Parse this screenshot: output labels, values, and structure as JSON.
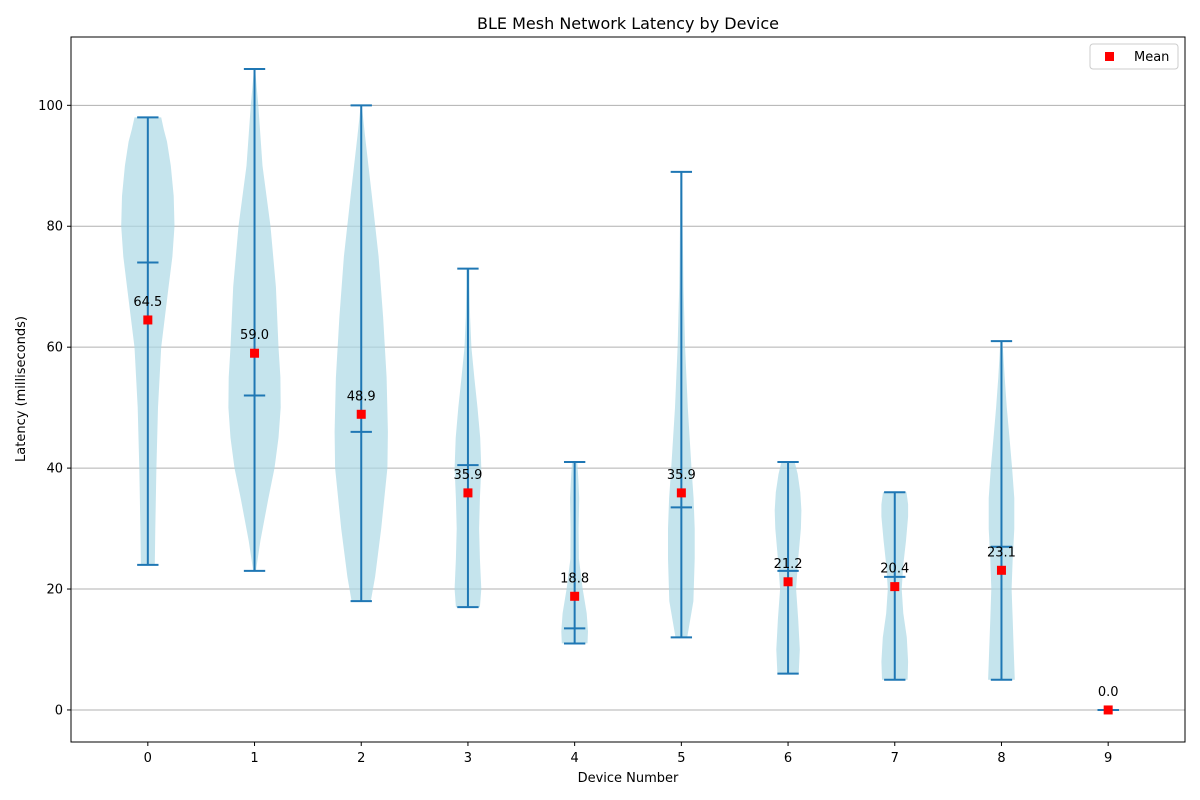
{
  "chart_data": {
    "type": "violin",
    "title": "BLE Mesh Network Latency by Device",
    "xlabel": "Device Number",
    "ylabel": "Latency (milliseconds)",
    "categories": [
      "0",
      "1",
      "2",
      "3",
      "4",
      "5",
      "6",
      "7",
      "8",
      "9"
    ],
    "xlim": [
      -0.72,
      9.72
    ],
    "ylim": [
      -5.3,
      111.3
    ],
    "y_ticks": [
      0,
      20,
      40,
      60,
      80,
      100
    ],
    "grid": "y-major",
    "legend": {
      "position": "top-right",
      "entries": [
        {
          "label": "Mean",
          "marker": "square",
          "color": "#ff0000"
        }
      ]
    },
    "colors": {
      "violin_fill": "#add8e6",
      "lines": "#1f77b4",
      "mean": "#ff0000",
      "grid": "#b0b0b0"
    },
    "devices": [
      {
        "device": 0,
        "min": 24,
        "max": 98,
        "median": 74,
        "mean": 64.5,
        "mean_label": "64.5",
        "profile": [
          [
            24,
            0.26
          ],
          [
            30,
            0.28
          ],
          [
            40,
            0.32
          ],
          [
            50,
            0.38
          ],
          [
            60,
            0.5
          ],
          [
            70,
            0.78
          ],
          [
            75,
            0.92
          ],
          [
            80,
            1.0
          ],
          [
            85,
            0.97
          ],
          [
            90,
            0.86
          ],
          [
            94,
            0.72
          ],
          [
            96,
            0.6
          ],
          [
            98,
            0.5
          ]
        ]
      },
      {
        "device": 1,
        "min": 23,
        "max": 106,
        "median": 52,
        "mean": 59.0,
        "mean_label": "59.0",
        "profile": [
          [
            23,
            0.05
          ],
          [
            28,
            0.22
          ],
          [
            35,
            0.52
          ],
          [
            40,
            0.75
          ],
          [
            45,
            0.9
          ],
          [
            50,
            0.98
          ],
          [
            55,
            0.97
          ],
          [
            60,
            0.9
          ],
          [
            70,
            0.8
          ],
          [
            80,
            0.6
          ],
          [
            90,
            0.3
          ],
          [
            100,
            0.14
          ],
          [
            106,
            0.02
          ]
        ]
      },
      {
        "device": 2,
        "min": 18,
        "max": 100,
        "median": 46,
        "mean": 48.9,
        "mean_label": "48.9",
        "profile": [
          [
            18,
            0.36
          ],
          [
            22,
            0.52
          ],
          [
            30,
            0.75
          ],
          [
            40,
            0.98
          ],
          [
            46,
            1.0
          ],
          [
            55,
            0.95
          ],
          [
            65,
            0.82
          ],
          [
            75,
            0.65
          ],
          [
            85,
            0.4
          ],
          [
            95,
            0.14
          ],
          [
            100,
            0.02
          ]
        ]
      },
      {
        "device": 3,
        "min": 17,
        "max": 73,
        "median": 40.5,
        "mean": 35.9,
        "mean_label": "35.9",
        "profile": [
          [
            17,
            0.45
          ],
          [
            20,
            0.5
          ],
          [
            25,
            0.45
          ],
          [
            30,
            0.42
          ],
          [
            35,
            0.45
          ],
          [
            40,
            0.5
          ],
          [
            45,
            0.46
          ],
          [
            50,
            0.36
          ],
          [
            55,
            0.24
          ],
          [
            60,
            0.13
          ],
          [
            65,
            0.08
          ],
          [
            70,
            0.06
          ],
          [
            73,
            0.06
          ]
        ]
      },
      {
        "device": 4,
        "min": 11,
        "max": 41,
        "median": 13.5,
        "mean": 18.8,
        "mean_label": "18.8",
        "profile": [
          [
            11,
            0.48
          ],
          [
            13,
            0.5
          ],
          [
            16,
            0.45
          ],
          [
            20,
            0.3
          ],
          [
            25,
            0.16
          ],
          [
            30,
            0.15
          ],
          [
            35,
            0.17
          ],
          [
            38,
            0.14
          ],
          [
            41,
            0.1
          ]
        ]
      },
      {
        "device": 5,
        "min": 12,
        "max": 89,
        "median": 33.5,
        "mean": 35.9,
        "mean_label": "35.9",
        "profile": [
          [
            12,
            0.22
          ],
          [
            18,
            0.45
          ],
          [
            25,
            0.5
          ],
          [
            30,
            0.5
          ],
          [
            35,
            0.46
          ],
          [
            40,
            0.38
          ],
          [
            50,
            0.24
          ],
          [
            60,
            0.14
          ],
          [
            70,
            0.08
          ],
          [
            80,
            0.05
          ],
          [
            89,
            0.04
          ]
        ]
      },
      {
        "device": 6,
        "min": 6,
        "max": 41,
        "median": 23,
        "mean": 21.2,
        "mean_label": "21.2",
        "profile": [
          [
            6,
            0.4
          ],
          [
            10,
            0.44
          ],
          [
            15,
            0.38
          ],
          [
            20,
            0.3
          ],
          [
            25,
            0.38
          ],
          [
            30,
            0.48
          ],
          [
            33,
            0.5
          ],
          [
            36,
            0.46
          ],
          [
            39,
            0.36
          ],
          [
            41,
            0.25
          ]
        ]
      },
      {
        "device": 7,
        "min": 5,
        "max": 36,
        "median": 22,
        "mean": 20.4,
        "mean_label": "20.4",
        "profile": [
          [
            5,
            0.48
          ],
          [
            8,
            0.5
          ],
          [
            12,
            0.45
          ],
          [
            16,
            0.32
          ],
          [
            20,
            0.26
          ],
          [
            24,
            0.32
          ],
          [
            28,
            0.42
          ],
          [
            32,
            0.5
          ],
          [
            34,
            0.5
          ],
          [
            36,
            0.44
          ]
        ]
      },
      {
        "device": 8,
        "min": 5,
        "max": 61,
        "median": 27,
        "mean": 23.1,
        "mean_label": "23.1",
        "profile": [
          [
            5,
            0.5
          ],
          [
            10,
            0.46
          ],
          [
            15,
            0.42
          ],
          [
            20,
            0.38
          ],
          [
            25,
            0.42
          ],
          [
            30,
            0.48
          ],
          [
            35,
            0.48
          ],
          [
            40,
            0.4
          ],
          [
            45,
            0.3
          ],
          [
            50,
            0.2
          ],
          [
            55,
            0.12
          ],
          [
            61,
            0.04
          ]
        ]
      },
      {
        "device": 9,
        "min": 0,
        "max": 0,
        "median": 0,
        "mean": 0.0,
        "mean_label": "0.0",
        "profile": []
      }
    ]
  }
}
